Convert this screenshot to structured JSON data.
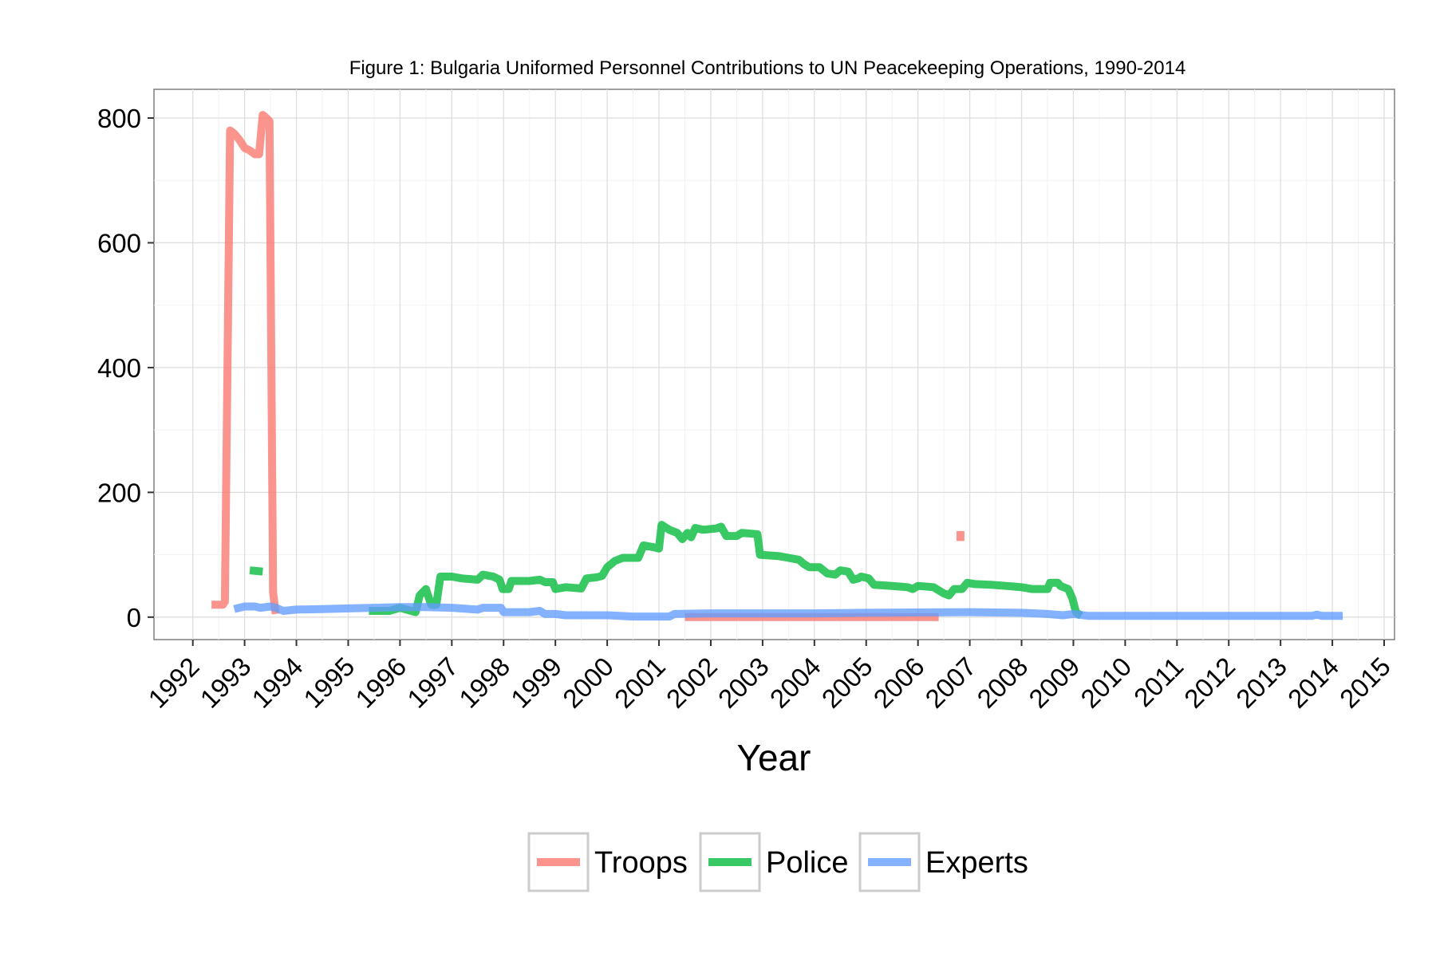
{
  "chart_data": {
    "type": "line",
    "title": "Figure 1: Bulgaria Uniformed Personnel Contributions to UN Peacekeeping Operations, 1990-2014",
    "xlabel": "Year",
    "ylabel": "",
    "xlim": [
      1991.25,
      2015.2
    ],
    "ylim": [
      -36,
      846
    ],
    "x_ticks": [
      "1992",
      "1993",
      "1994",
      "1995",
      "1996",
      "1997",
      "1998",
      "1999",
      "2000",
      "2001",
      "2002",
      "2003",
      "2004",
      "2005",
      "2006",
      "2007",
      "2008",
      "2009",
      "2010",
      "2011",
      "2012",
      "2013",
      "2014",
      "2015"
    ],
    "y_ticks": [
      0,
      200,
      400,
      600,
      800
    ],
    "grid": true,
    "legend_position": "bottom",
    "series": [
      {
        "name": "Troops",
        "color": "#F8766D",
        "segments": [
          [
            [
              1992.36,
              20
            ],
            [
              1992.58,
              20
            ],
            [
              1992.62,
              25
            ],
            [
              1992.72,
              780
            ],
            [
              1992.8,
              775
            ],
            [
              1992.9,
              765
            ],
            [
              1993.0,
              752
            ],
            [
              1993.1,
              748
            ],
            [
              1993.2,
              742
            ],
            [
              1993.28,
              742
            ],
            [
              1993.35,
              805
            ],
            [
              1993.42,
              800
            ],
            [
              1993.48,
              795
            ],
            [
              1993.55,
              40
            ],
            [
              1993.6,
              5
            ]
          ],
          [
            [
              2001.5,
              0
            ],
            [
              2006.4,
              0
            ]
          ],
          [
            [
              2006.82,
              122
            ],
            [
              2006.82,
              138
            ]
          ]
        ]
      },
      {
        "name": "Police",
        "color": "#00BA38",
        "segments": [
          [
            [
              1993.1,
              75
            ],
            [
              1993.35,
              73
            ]
          ],
          [
            [
              1995.4,
              10
            ],
            [
              1995.8,
              10
            ],
            [
              1996.0,
              15
            ],
            [
              1996.3,
              8
            ],
            [
              1996.38,
              35
            ],
            [
              1996.5,
              45
            ],
            [
              1996.6,
              20
            ],
            [
              1996.7,
              20
            ],
            [
              1996.78,
              65
            ],
            [
              1997.0,
              65
            ],
            [
              1997.2,
              62
            ],
            [
              1997.5,
              60
            ],
            [
              1997.6,
              68
            ],
            [
              1997.8,
              65
            ],
            [
              1997.92,
              60
            ],
            [
              1997.98,
              45
            ],
            [
              1998.1,
              45
            ],
            [
              1998.15,
              58
            ],
            [
              1998.5,
              58
            ],
            [
              1998.7,
              60
            ],
            [
              1998.8,
              56
            ],
            [
              1998.95,
              56
            ],
            [
              1999.0,
              45
            ],
            [
              1999.2,
              48
            ],
            [
              1999.5,
              46
            ],
            [
              1999.6,
              62
            ],
            [
              1999.8,
              64
            ],
            [
              1999.9,
              66
            ],
            [
              2000.0,
              80
            ],
            [
              2000.15,
              90
            ],
            [
              2000.3,
              95
            ],
            [
              2000.6,
              95
            ],
            [
              2000.7,
              115
            ],
            [
              2000.9,
              112
            ],
            [
              2001.0,
              110
            ],
            [
              2001.05,
              148
            ],
            [
              2001.2,
              140
            ],
            [
              2001.35,
              135
            ],
            [
              2001.45,
              125
            ],
            [
              2001.55,
              135
            ],
            [
              2001.62,
              128
            ],
            [
              2001.7,
              143
            ],
            [
              2001.85,
              140
            ],
            [
              2002.1,
              142
            ],
            [
              2002.2,
              145
            ],
            [
              2002.3,
              130
            ],
            [
              2002.5,
              130
            ],
            [
              2002.6,
              135
            ],
            [
              2002.9,
              133
            ],
            [
              2002.95,
              100
            ],
            [
              2003.3,
              98
            ],
            [
              2003.5,
              95
            ],
            [
              2003.7,
              92
            ],
            [
              2003.8,
              85
            ],
            [
              2003.9,
              80
            ],
            [
              2004.1,
              80
            ],
            [
              2004.25,
              70
            ],
            [
              2004.4,
              68
            ],
            [
              2004.5,
              75
            ],
            [
              2004.65,
              73
            ],
            [
              2004.75,
              60
            ],
            [
              2004.85,
              62
            ],
            [
              2004.9,
              65
            ],
            [
              2005.05,
              62
            ],
            [
              2005.15,
              52
            ],
            [
              2005.5,
              50
            ],
            [
              2005.8,
              48
            ],
            [
              2005.9,
              45
            ],
            [
              2006.0,
              50
            ],
            [
              2006.3,
              48
            ],
            [
              2006.5,
              38
            ],
            [
              2006.6,
              35
            ],
            [
              2006.7,
              45
            ],
            [
              2006.85,
              45
            ],
            [
              2006.95,
              55
            ],
            [
              2007.1,
              53
            ],
            [
              2007.4,
              52
            ],
            [
              2007.7,
              50
            ],
            [
              2008.0,
              48
            ],
            [
              2008.2,
              45
            ],
            [
              2008.5,
              45
            ],
            [
              2008.55,
              55
            ],
            [
              2008.7,
              55
            ],
            [
              2008.75,
              50
            ],
            [
              2008.9,
              45
            ],
            [
              2008.98,
              30
            ],
            [
              2009.05,
              8
            ],
            [
              2009.15,
              2
            ]
          ]
        ]
      },
      {
        "name": "Experts",
        "color": "#619CFF",
        "segments": [
          [
            [
              1992.8,
              13
            ],
            [
              1993.0,
              17
            ],
            [
              1993.2,
              17
            ],
            [
              1993.3,
              15
            ],
            [
              1993.5,
              17
            ],
            [
              1993.6,
              15
            ],
            [
              1993.75,
              10
            ],
            [
              1994.0,
              12
            ],
            [
              1994.5,
              13
            ],
            [
              1995.0,
              14
            ],
            [
              1995.5,
              15
            ],
            [
              1996.0,
              16
            ],
            [
              1996.5,
              16
            ],
            [
              1997.0,
              15
            ],
            [
              1997.5,
              12
            ],
            [
              1997.6,
              15
            ],
            [
              1997.95,
              15
            ],
            [
              1998.0,
              8
            ],
            [
              1998.5,
              8
            ],
            [
              1998.7,
              10
            ],
            [
              1998.8,
              5
            ],
            [
              1999.0,
              5
            ],
            [
              1999.2,
              3
            ],
            [
              2000.0,
              3
            ],
            [
              2000.5,
              1
            ],
            [
              2001.2,
              1
            ],
            [
              2001.3,
              5
            ],
            [
              2002.0,
              6
            ],
            [
              2004.0,
              6
            ],
            [
              2005.0,
              7
            ],
            [
              2007.0,
              8
            ],
            [
              2008.0,
              7
            ],
            [
              2008.5,
              5
            ],
            [
              2008.8,
              3
            ],
            [
              2009.0,
              5
            ],
            [
              2009.3,
              2
            ],
            [
              2010.0,
              2
            ],
            [
              2013.6,
              2
            ],
            [
              2013.7,
              4
            ],
            [
              2013.8,
              2
            ],
            [
              2014.2,
              2
            ]
          ]
        ]
      }
    ]
  }
}
